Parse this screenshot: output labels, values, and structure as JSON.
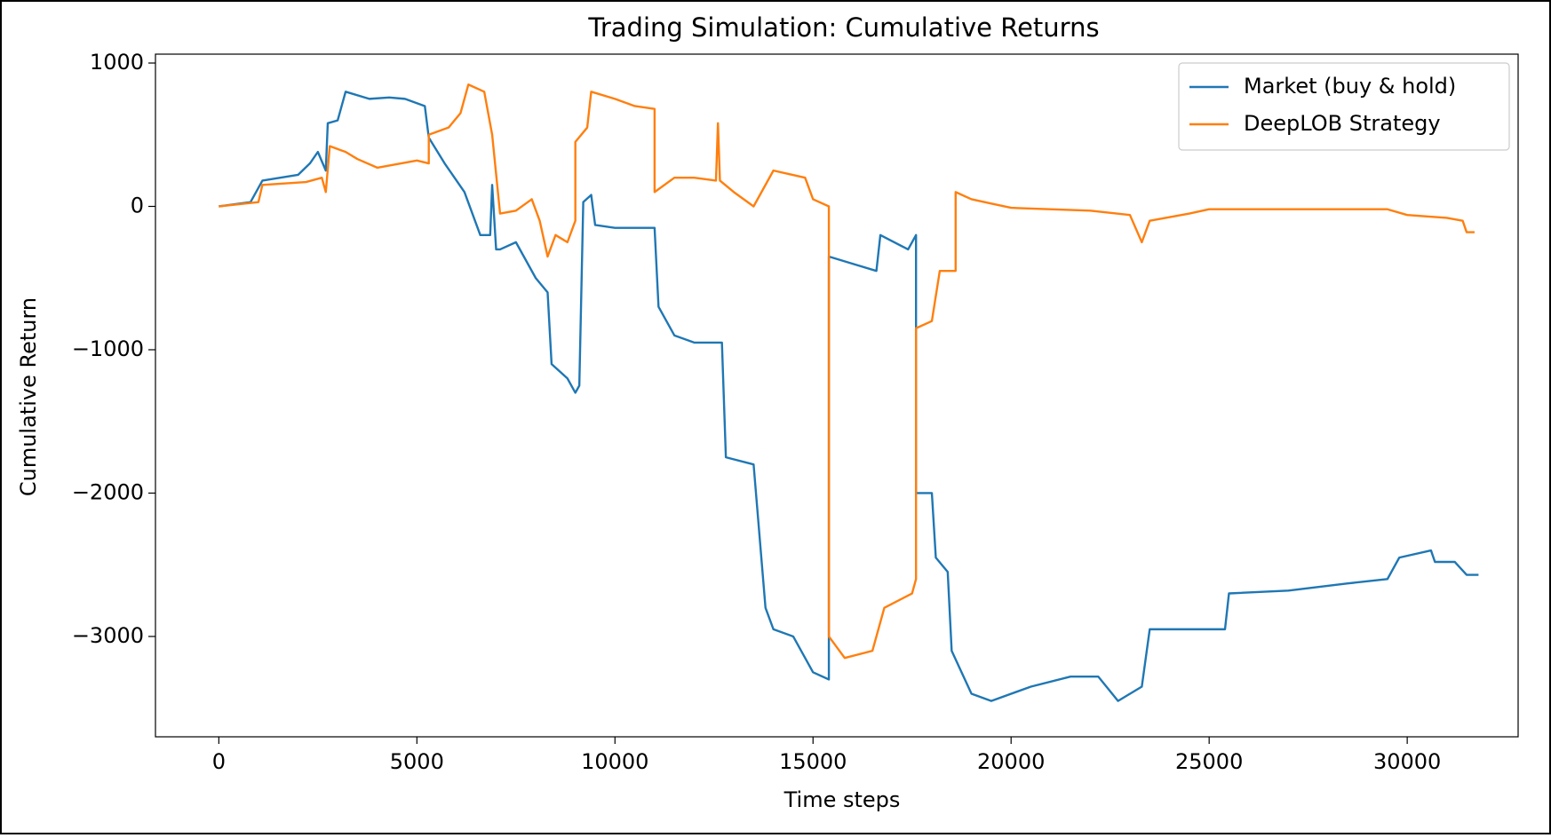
{
  "chart_data": {
    "type": "line",
    "title": "Trading Simulation: Cumulative Returns",
    "x_label": "Time steps",
    "y_label": "Cumulative Return",
    "xlim": [
      -1600,
      32800
    ],
    "ylim": [
      -3700,
      1062
    ],
    "xticks": [
      0,
      5000,
      10000,
      15000,
      20000,
      25000,
      30000
    ],
    "yticks": [
      {
        "value": -3000,
        "label": "−3000"
      },
      {
        "value": -2000,
        "label": "−2000"
      },
      {
        "value": -1000,
        "label": "−1000"
      },
      0,
      1000
    ],
    "grid": false,
    "legend": "upper right",
    "series": [
      {
        "name": "Market (buy & hold)",
        "color": "#1f77b4",
        "x": [
          0,
          800,
          1100,
          2000,
          2300,
          2500,
          2700,
          2750,
          3000,
          3200,
          3800,
          4300,
          4700,
          5200,
          5300,
          5700,
          6200,
          6600,
          6850,
          6900,
          7000,
          7100,
          7500,
          8000,
          8300,
          8400,
          8800,
          9000,
          9100,
          9200,
          9400,
          9500,
          10000,
          11000,
          11100,
          11500,
          12000,
          12700,
          12800,
          13500,
          13800,
          14000,
          14500,
          15000,
          15400,
          15400,
          16000,
          16600,
          16700,
          17400,
          17600,
          17600,
          18000,
          18100,
          18400,
          18500,
          19000,
          19500,
          20500,
          21500,
          22200,
          22700,
          23300,
          23500,
          25400,
          25500,
          27000,
          28500,
          29500,
          29800,
          30600,
          30700,
          31200,
          31500,
          31800
        ],
        "values": [
          0,
          30,
          180,
          220,
          300,
          380,
          250,
          580,
          600,
          800,
          750,
          760,
          750,
          700,
          480,
          300,
          100,
          -200,
          -200,
          150,
          -300,
          -300,
          -250,
          -500,
          -600,
          -1100,
          -1200,
          -1300,
          -1250,
          30,
          80,
          -130,
          -150,
          -150,
          -700,
          -900,
          -950,
          -950,
          -1750,
          -1800,
          -2800,
          -2950,
          -3000,
          -3250,
          -3300,
          -350,
          -400,
          -450,
          -200,
          -300,
          -200,
          -2000,
          -2000,
          -2450,
          -2550,
          -3100,
          -3400,
          -3450,
          -3350,
          -3280,
          -3280,
          -3450,
          -3350,
          -2950,
          -2950,
          -2700,
          -2680,
          -2630,
          -2600,
          -2450,
          -2400,
          -2480,
          -2480,
          -2570,
          -2570
        ]
      },
      {
        "name": "DeepLOB Strategy",
        "color": "#ff7f0e",
        "x": [
          0,
          1000,
          1100,
          2200,
          2600,
          2700,
          2800,
          3200,
          3500,
          4000,
          5000,
          5300,
          5300,
          5800,
          6100,
          6300,
          6700,
          6900,
          7100,
          7500,
          7900,
          8100,
          8300,
          8500,
          8800,
          9000,
          9000,
          9300,
          9400,
          10000,
          10500,
          11000,
          11000,
          11500,
          12000,
          12550,
          12600,
          12650,
          13000,
          13500,
          14000,
          14800,
          15000,
          15400,
          15400,
          15800,
          16500,
          16800,
          17500,
          17600,
          17600,
          18000,
          18200,
          18600,
          18600,
          19000,
          19500,
          20000,
          22000,
          23000,
          23300,
          23500,
          24500,
          25000,
          27000,
          29500,
          30000,
          31000,
          31400,
          31500,
          31700
        ],
        "values": [
          0,
          30,
          150,
          170,
          200,
          100,
          420,
          380,
          330,
          270,
          320,
          300,
          500,
          550,
          650,
          850,
          800,
          500,
          -50,
          -30,
          50,
          -100,
          -350,
          -200,
          -250,
          -100,
          450,
          550,
          800,
          750,
          700,
          680,
          100,
          200,
          200,
          180,
          580,
          180,
          100,
          0,
          250,
          200,
          50,
          0,
          -3000,
          -3150,
          -3100,
          -2800,
          -2700,
          -2600,
          -850,
          -800,
          -450,
          -450,
          100,
          50,
          20,
          -10,
          -30,
          -60,
          -250,
          -100,
          -50,
          -20,
          -20,
          -20,
          -60,
          -80,
          -100,
          -180,
          -180
        ]
      }
    ]
  }
}
